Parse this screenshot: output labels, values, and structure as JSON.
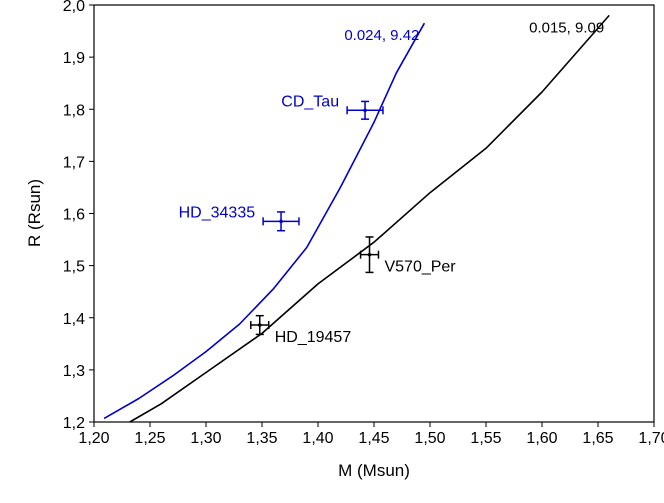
{
  "chart_data": {
    "type": "line",
    "title": "",
    "xlabel": "M (Msun)",
    "ylabel": "R (Rsun)",
    "xlim": [
      1.2,
      1.7
    ],
    "ylim": [
      1.2,
      2.0
    ],
    "x_ticks": [
      1.2,
      1.25,
      1.3,
      1.35,
      1.4,
      1.45,
      1.5,
      1.55,
      1.6,
      1.65,
      1.7
    ],
    "y_ticks": [
      1.2,
      1.3,
      1.4,
      1.5,
      1.6,
      1.7,
      1.8,
      1.9,
      2.0
    ],
    "x_tick_labels": [
      "1,20",
      "1,25",
      "1,30",
      "1,35",
      "1,40",
      "1,45",
      "1,50",
      "1,55",
      "1,60",
      "1,65",
      "1,70"
    ],
    "y_tick_labels": [
      "1,2",
      "1,3",
      "1,4",
      "1,5",
      "1,6",
      "1,7",
      "1,8",
      "1,9",
      "2,0"
    ],
    "grid": false,
    "series": [
      {
        "name": "0.024, 9.42",
        "label": "0.024, 9.42",
        "color": "#0000cc",
        "x": [
          1.209,
          1.24,
          1.27,
          1.3,
          1.33,
          1.36,
          1.39,
          1.42,
          1.45,
          1.47,
          1.495
        ],
        "y": [
          1.207,
          1.245,
          1.288,
          1.335,
          1.388,
          1.455,
          1.535,
          1.65,
          1.775,
          1.87,
          1.965
        ]
      },
      {
        "name": "0.015, 9.09",
        "label": "0.015, 9.09",
        "color": "#000000",
        "x": [
          1.232,
          1.26,
          1.3,
          1.35,
          1.4,
          1.45,
          1.5,
          1.55,
          1.6,
          1.66
        ],
        "y": [
          1.2,
          1.235,
          1.295,
          1.37,
          1.465,
          1.545,
          1.64,
          1.725,
          1.833,
          1.98
        ]
      }
    ],
    "stars": [
      {
        "name": "CD_Tau",
        "color": "#0000cc",
        "mass": 1.442,
        "mass_err": 0.016,
        "radius": 1.798,
        "radius_err": 0.017,
        "label_side": "left"
      },
      {
        "name": "HD_34335",
        "color": "#0000cc",
        "mass": 1.367,
        "mass_err": 0.016,
        "radius": 1.585,
        "radius_err": 0.018,
        "label_side": "left"
      },
      {
        "name": "V570_Per",
        "color": "#000000",
        "mass": 1.446,
        "mass_err": 0.008,
        "radius": 1.521,
        "radius_err": 0.034,
        "label_side": "right"
      },
      {
        "name": "HD_19457",
        "color": "#000000",
        "mass": 1.348,
        "mass_err": 0.008,
        "radius": 1.386,
        "radius_err": 0.018,
        "label_side": "right"
      }
    ]
  }
}
